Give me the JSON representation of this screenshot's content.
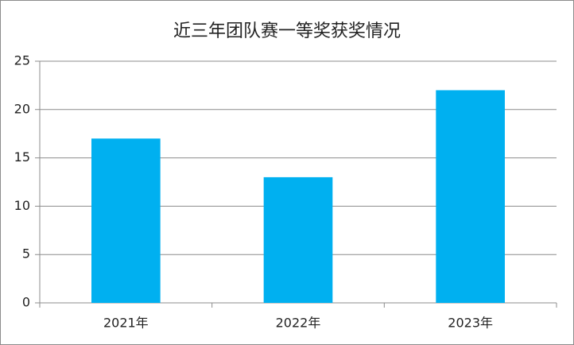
{
  "chart_data": {
    "type": "bar",
    "title": "近三年团队赛一等奖获奖情况",
    "categories": [
      "2021年",
      "2022年",
      "2023年"
    ],
    "values": [
      17,
      13,
      22
    ],
    "color": "#00b0f0",
    "ylim": [
      0,
      25
    ],
    "yticks": [
      0,
      5,
      10,
      15,
      20,
      25
    ],
    "grid": true
  }
}
